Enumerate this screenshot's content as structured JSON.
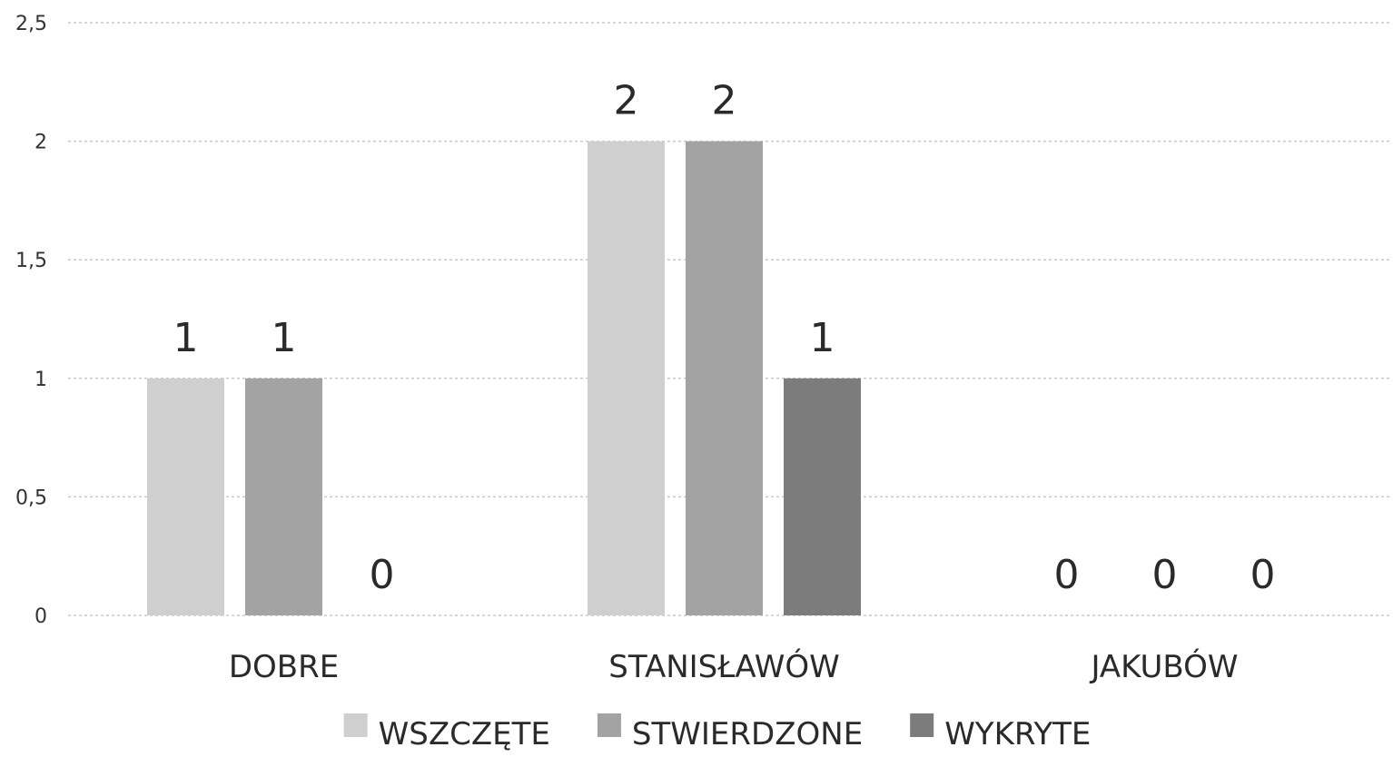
{
  "chart_data": {
    "type": "bar",
    "categories": [
      "DOBRE",
      "STANISŁAWÓW",
      "JAKUBÓW"
    ],
    "series": [
      {
        "name": "WSZCZĘTE",
        "values": [
          1,
          2,
          0
        ],
        "color": "#cfcfcf"
      },
      {
        "name": "STWIERDZONE",
        "values": [
          1,
          2,
          0
        ],
        "color": "#a3a3a3"
      },
      {
        "name": "WYKRYTE",
        "values": [
          0,
          1,
          0
        ],
        "color": "#7c7c7c"
      }
    ],
    "y_ticks": [
      "0",
      "0,5",
      "1",
      "1,5",
      "2",
      "2,5"
    ],
    "ylim": [
      0,
      2.5
    ],
    "grid": true,
    "legend_position": "bottom"
  }
}
